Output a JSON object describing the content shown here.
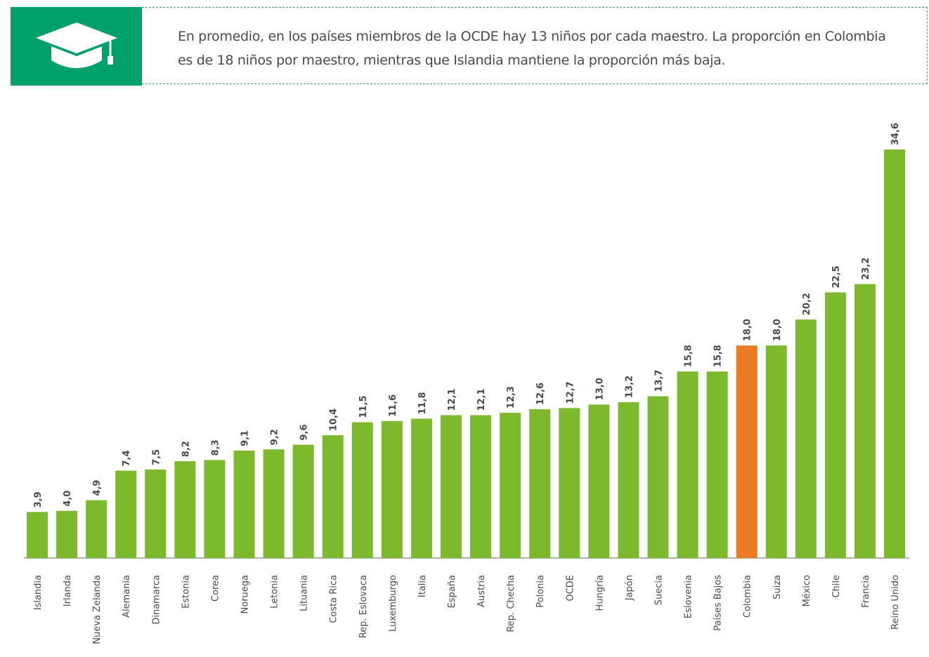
{
  "header": {
    "icon": "graduation-cap-icon",
    "text": "En promedio, en los países miembros de la OCDE hay 13 niños por cada maestro. La proporción en Colombia es de 18 niños por maestro, mientras que Islandia mantiene la proporción más baja."
  },
  "colors": {
    "accent": "#00a06b",
    "bar": "#7db92c",
    "highlight": "#ec7a23",
    "text": "#4a4a4a",
    "axis": "#9a9a9a"
  },
  "chart_data": {
    "type": "bar",
    "categories": [
      "Islandia",
      "Irlanda",
      "Nueva Zelanda",
      "Alemania",
      "Dinamarca",
      "Estonia",
      "Corea",
      "Noruega",
      "Letonia",
      "Lituania",
      "Costa Rica",
      "Rep. Eslovaca",
      "Luxemburgo",
      "Italia",
      "España",
      "Austria",
      "Rep. Checha",
      "Polonia",
      "OCDE",
      "Hungría",
      "Japón",
      "Suecia",
      "Eslovenia",
      "Países Bajos",
      "Colombia",
      "Suiza",
      "México",
      "Chile",
      "Francia",
      "Reino Unido"
    ],
    "values": [
      3.9,
      4.0,
      4.9,
      7.4,
      7.5,
      8.2,
      8.3,
      9.1,
      9.2,
      9.6,
      10.4,
      11.5,
      11.6,
      11.8,
      12.1,
      12.1,
      12.3,
      12.6,
      12.7,
      13.0,
      13.2,
      13.7,
      15.8,
      15.8,
      18.0,
      18.0,
      20.2,
      22.5,
      23.2,
      34.6
    ],
    "value_labels": [
      "3,9",
      "4,0",
      "4,9",
      "7,4",
      "7,5",
      "8,2",
      "8,3",
      "9,1",
      "9,2",
      "9,6",
      "10,4",
      "11,5",
      "11,6",
      "11,8",
      "12,1",
      "12,1",
      "12,3",
      "12,6",
      "12,7",
      "13,0",
      "13,2",
      "13,7",
      "15,8",
      "15,8",
      "18,0",
      "18,0",
      "20,2",
      "22,5",
      "23,2",
      "34,6"
    ],
    "highlight_category": "Colombia",
    "title": "",
    "xlabel": "",
    "ylabel": "",
    "ylim": [
      0,
      34.6
    ],
    "grid": false
  }
}
